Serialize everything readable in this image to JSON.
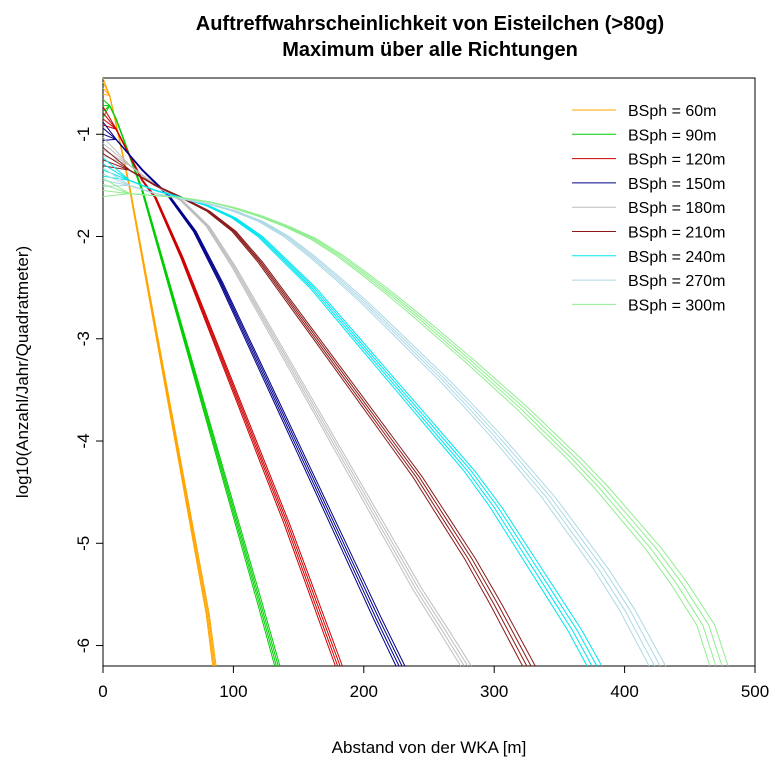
{
  "chart_data": {
    "type": "line",
    "title": "Auftreffwahrscheinlichkeit von Eisteilchen (>80g)",
    "subtitle": "Maximum über alle Richtungen",
    "xlabel": "Abstand von der WKA [m]",
    "ylabel": "log10(Anzahl/Jahr/Quadratmeter)",
    "xlim": [
      0,
      500
    ],
    "ylim": [
      -6.2,
      -0.45
    ],
    "x_ticks": [
      0,
      100,
      200,
      300,
      400,
      500
    ],
    "y_ticks": [
      -6,
      -5,
      -4,
      -3,
      -2,
      -1
    ],
    "grid": false,
    "legend_position": "top-right",
    "series": [
      {
        "name": "BSph = 60m",
        "color": "#ffa500",
        "points": [
          [
            0,
            -0.55
          ],
          [
            5,
            -0.62
          ],
          [
            10,
            -0.9
          ],
          [
            20,
            -1.5
          ],
          [
            30,
            -2.2
          ],
          [
            40,
            -2.9
          ],
          [
            50,
            -3.6
          ],
          [
            60,
            -4.3
          ],
          [
            70,
            -5.0
          ],
          [
            80,
            -5.7
          ],
          [
            85,
            -6.2
          ]
        ]
      },
      {
        "name": "BSph = 90m",
        "color": "#00cd00",
        "points": [
          [
            0,
            -0.78
          ],
          [
            5,
            -0.72
          ],
          [
            10,
            -0.85
          ],
          [
            20,
            -1.2
          ],
          [
            30,
            -1.55
          ],
          [
            40,
            -2.0
          ],
          [
            60,
            -2.9
          ],
          [
            80,
            -3.8
          ],
          [
            100,
            -4.7
          ],
          [
            120,
            -5.6
          ],
          [
            133,
            -6.2
          ]
        ]
      },
      {
        "name": "BSph = 120m",
        "color": "#cd0000",
        "points": [
          [
            0,
            -0.85
          ],
          [
            10,
            -0.95
          ],
          [
            20,
            -1.2
          ],
          [
            30,
            -1.45
          ],
          [
            40,
            -1.62
          ],
          [
            60,
            -2.2
          ],
          [
            80,
            -2.85
          ],
          [
            100,
            -3.5
          ],
          [
            120,
            -4.15
          ],
          [
            140,
            -4.8
          ],
          [
            160,
            -5.5
          ],
          [
            180,
            -6.2
          ]
        ]
      },
      {
        "name": "BSph = 150m",
        "color": "#00008b",
        "points": [
          [
            0,
            -1.0
          ],
          [
            10,
            -1.05
          ],
          [
            20,
            -1.2
          ],
          [
            30,
            -1.35
          ],
          [
            50,
            -1.6
          ],
          [
            70,
            -1.95
          ],
          [
            90,
            -2.45
          ],
          [
            110,
            -3.0
          ],
          [
            130,
            -3.55
          ],
          [
            150,
            -4.1
          ],
          [
            170,
            -4.65
          ],
          [
            190,
            -5.2
          ],
          [
            210,
            -5.75
          ],
          [
            227,
            -6.2
          ]
        ]
      },
      {
        "name": "BSph = 180m",
        "color": "#bebebe",
        "points": [
          [
            0,
            -1.15
          ],
          [
            20,
            -1.3
          ],
          [
            40,
            -1.5
          ],
          [
            60,
            -1.65
          ],
          [
            80,
            -1.9
          ],
          [
            100,
            -2.3
          ],
          [
            120,
            -2.75
          ],
          [
            140,
            -3.2
          ],
          [
            160,
            -3.65
          ],
          [
            180,
            -4.1
          ],
          [
            200,
            -4.55
          ],
          [
            220,
            -5.0
          ],
          [
            240,
            -5.45
          ],
          [
            260,
            -5.85
          ],
          [
            277,
            -6.2
          ]
        ]
      },
      {
        "name": "BSph = 210m",
        "color": "#8b1a1a",
        "points": [
          [
            0,
            -1.25
          ],
          [
            20,
            -1.35
          ],
          [
            40,
            -1.5
          ],
          [
            60,
            -1.62
          ],
          [
            80,
            -1.75
          ],
          [
            100,
            -1.95
          ],
          [
            120,
            -2.25
          ],
          [
            140,
            -2.6
          ],
          [
            160,
            -2.95
          ],
          [
            180,
            -3.3
          ],
          [
            200,
            -3.65
          ],
          [
            220,
            -4.0
          ],
          [
            240,
            -4.35
          ],
          [
            260,
            -4.75
          ],
          [
            280,
            -5.15
          ],
          [
            300,
            -5.6
          ],
          [
            325,
            -6.2
          ]
        ]
      },
      {
        "name": "BSph = 240m",
        "color": "#00e5ee",
        "points": [
          [
            0,
            -1.35
          ],
          [
            20,
            -1.45
          ],
          [
            40,
            -1.55
          ],
          [
            60,
            -1.62
          ],
          [
            80,
            -1.7
          ],
          [
            100,
            -1.82
          ],
          [
            120,
            -2.0
          ],
          [
            140,
            -2.25
          ],
          [
            160,
            -2.5
          ],
          [
            180,
            -2.8
          ],
          [
            200,
            -3.1
          ],
          [
            220,
            -3.4
          ],
          [
            240,
            -3.7
          ],
          [
            260,
            -4.0
          ],
          [
            280,
            -4.3
          ],
          [
            300,
            -4.65
          ],
          [
            320,
            -5.05
          ],
          [
            340,
            -5.45
          ],
          [
            360,
            -5.85
          ],
          [
            375,
            -6.2
          ]
        ]
      },
      {
        "name": "BSph = 270m",
        "color": "#add8e6",
        "points": [
          [
            0,
            -1.45
          ],
          [
            20,
            -1.5
          ],
          [
            40,
            -1.58
          ],
          [
            60,
            -1.63
          ],
          [
            80,
            -1.68
          ],
          [
            100,
            -1.75
          ],
          [
            120,
            -1.85
          ],
          [
            140,
            -2.0
          ],
          [
            160,
            -2.2
          ],
          [
            180,
            -2.42
          ],
          [
            200,
            -2.65
          ],
          [
            220,
            -2.9
          ],
          [
            240,
            -3.15
          ],
          [
            260,
            -3.4
          ],
          [
            280,
            -3.67
          ],
          [
            300,
            -3.95
          ],
          [
            320,
            -4.25
          ],
          [
            340,
            -4.55
          ],
          [
            360,
            -4.9
          ],
          [
            380,
            -5.25
          ],
          [
            400,
            -5.65
          ],
          [
            423,
            -6.2
          ]
        ]
      },
      {
        "name": "BSph = 300m",
        "color": "#90ee90",
        "points": [
          [
            0,
            -1.55
          ],
          [
            20,
            -1.58
          ],
          [
            40,
            -1.6
          ],
          [
            60,
            -1.62
          ],
          [
            80,
            -1.66
          ],
          [
            100,
            -1.72
          ],
          [
            120,
            -1.8
          ],
          [
            140,
            -1.9
          ],
          [
            160,
            -2.02
          ],
          [
            180,
            -2.18
          ],
          [
            200,
            -2.37
          ],
          [
            220,
            -2.57
          ],
          [
            240,
            -2.78
          ],
          [
            260,
            -3.0
          ],
          [
            280,
            -3.22
          ],
          [
            300,
            -3.45
          ],
          [
            320,
            -3.68
          ],
          [
            340,
            -3.93
          ],
          [
            360,
            -4.18
          ],
          [
            380,
            -4.45
          ],
          [
            400,
            -4.75
          ],
          [
            420,
            -5.05
          ],
          [
            440,
            -5.4
          ],
          [
            460,
            -5.8
          ],
          [
            470,
            -6.2
          ]
        ]
      }
    ]
  }
}
